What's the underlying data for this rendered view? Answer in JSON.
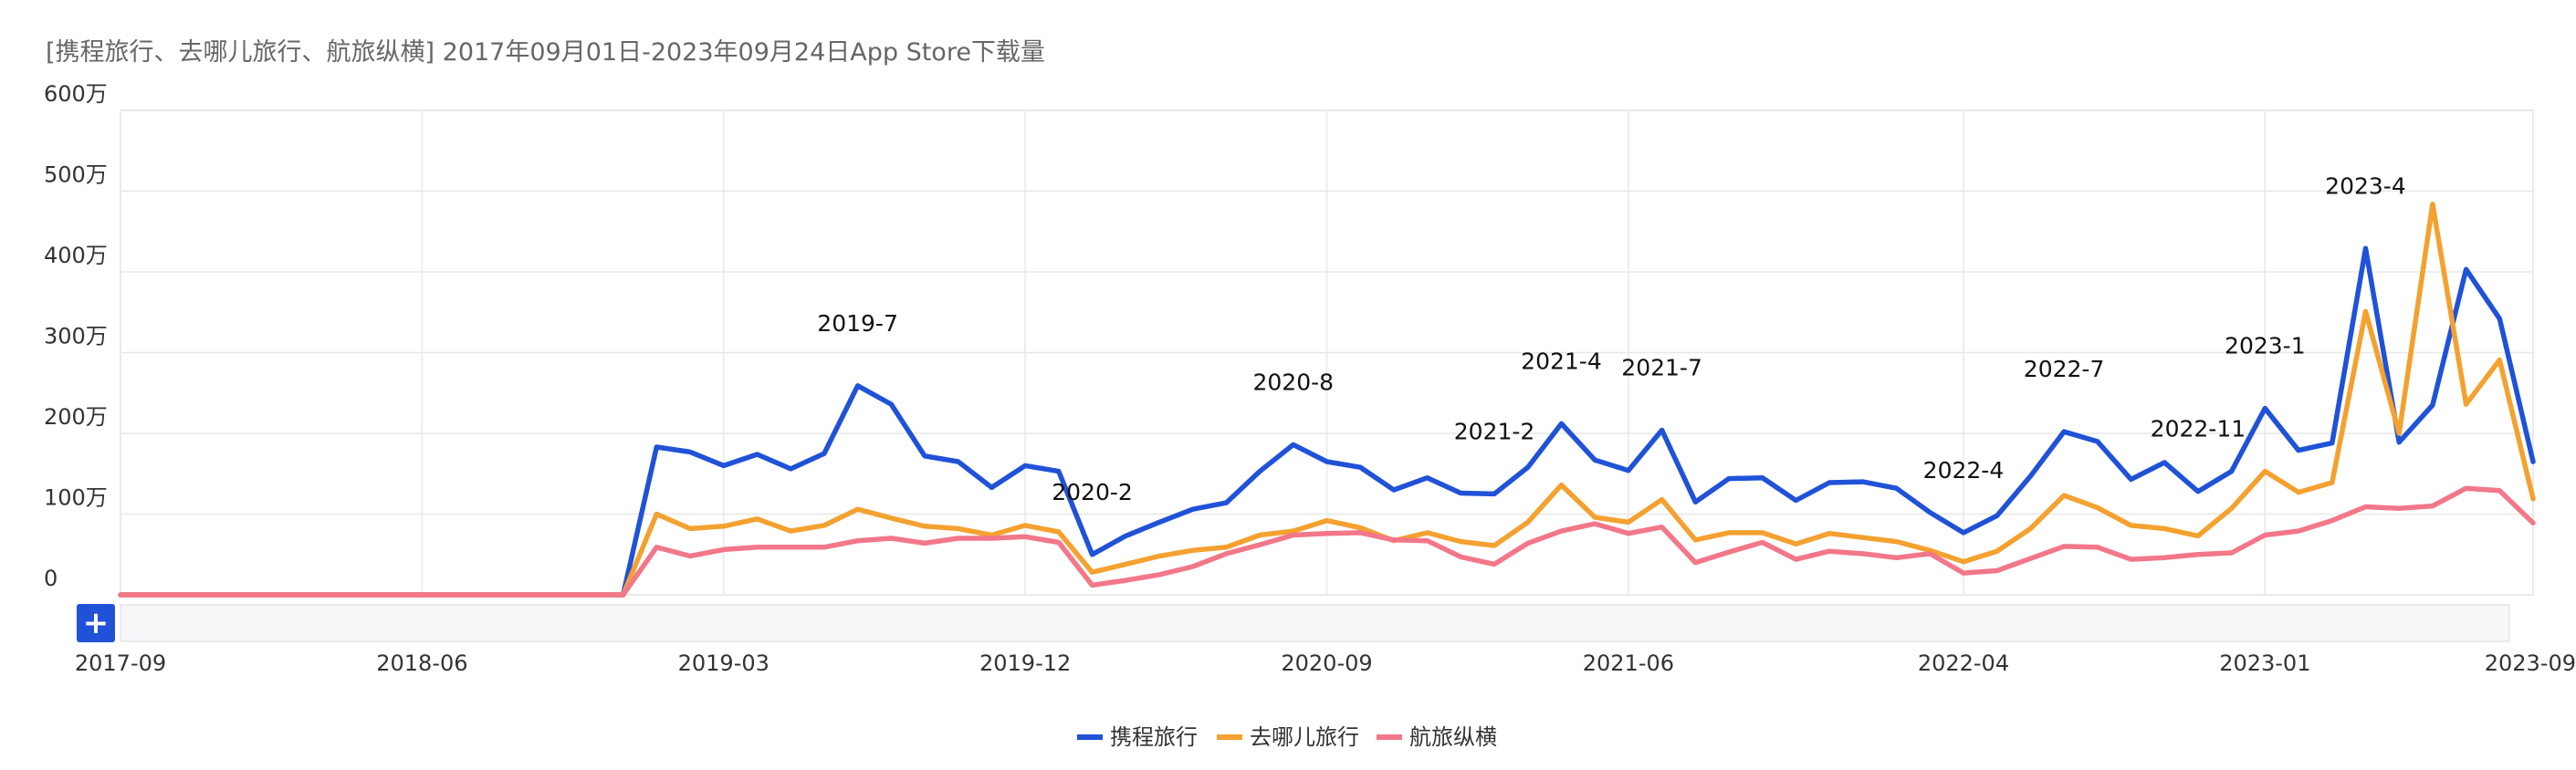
{
  "title": "[携程旅行、去哪儿旅行、航旅纵横]  2017年09月01日-2023年09月24日App Store下载量",
  "colors": {
    "ctrip": "#2052d8",
    "qunar": "#f4a130",
    "umetrip": "#f27789",
    "grid": "#e8e8e8",
    "axis_text": "#333333",
    "title_text": "#666666"
  },
  "chart_data": {
    "type": "line",
    "title": "[携程旅行、去哪儿旅行、航旅纵横]  2017年09月01日-2023年09月24日App Store下载量",
    "xlabel": "",
    "ylabel": "",
    "ylim": [
      0,
      6000000
    ],
    "y_ticks": [
      {
        "value": 0,
        "label": "0"
      },
      {
        "value": 1000000,
        "label": "100万"
      },
      {
        "value": 2000000,
        "label": "200万"
      },
      {
        "value": 3000000,
        "label": "300万"
      },
      {
        "value": 4000000,
        "label": "400万"
      },
      {
        "value": 5000000,
        "label": "500万"
      },
      {
        "value": 6000000,
        "label": "600万"
      }
    ],
    "x_ticks": [
      "2017-09",
      "2018-06",
      "2019-03",
      "2019-12",
      "2020-09",
      "2021-06",
      "2022-04",
      "2023-01",
      "2023-09"
    ],
    "x_tick_index": [
      0,
      9,
      18,
      27,
      36,
      45,
      55,
      64,
      72
    ],
    "n_points": 73,
    "grid": true,
    "legend_position": "bottom-center",
    "series": [
      {
        "name": "携程旅行",
        "key": "ctrip",
        "values": [
          0,
          0,
          0,
          0,
          0,
          0,
          0,
          0,
          0,
          0,
          0,
          0,
          0,
          0,
          0,
          0,
          1830000,
          1770000,
          1600000,
          1740000,
          1560000,
          1750000,
          2590000,
          2360000,
          1720000,
          1650000,
          1330000,
          1600000,
          1530000,
          500000,
          730000,
          900000,
          1060000,
          1140000,
          1530000,
          1860000,
          1650000,
          1580000,
          1300000,
          1450000,
          1260000,
          1250000,
          1580000,
          2120000,
          1670000,
          1540000,
          2040000,
          1150000,
          1440000,
          1450000,
          1170000,
          1390000,
          1400000,
          1320000,
          1020000,
          770000,
          980000,
          1470000,
          2020000,
          1900000,
          1430000,
          1640000,
          1280000,
          1530000,
          2310000,
          1790000,
          1880000,
          4290000,
          1890000,
          2350000,
          4030000,
          3420000,
          1650000
        ]
      },
      {
        "name": "去哪儿旅行",
        "key": "qunar",
        "values": [
          0,
          0,
          0,
          0,
          0,
          0,
          0,
          0,
          0,
          0,
          0,
          0,
          0,
          0,
          0,
          0,
          1000000,
          820000,
          850000,
          940000,
          790000,
          860000,
          1060000,
          950000,
          850000,
          820000,
          740000,
          860000,
          780000,
          280000,
          380000,
          480000,
          550000,
          590000,
          740000,
          790000,
          920000,
          830000,
          670000,
          770000,
          660000,
          610000,
          900000,
          1360000,
          960000,
          900000,
          1180000,
          680000,
          770000,
          770000,
          630000,
          760000,
          710000,
          660000,
          550000,
          410000,
          540000,
          820000,
          1230000,
          1080000,
          860000,
          820000,
          730000,
          1070000,
          1530000,
          1270000,
          1390000,
          3510000,
          2000000,
          4840000,
          2360000,
          2910000,
          1190000
        ]
      },
      {
        "name": "航旅纵横",
        "key": "umetrip",
        "values": [
          0,
          0,
          0,
          0,
          0,
          0,
          0,
          0,
          0,
          0,
          0,
          0,
          0,
          0,
          0,
          0,
          590000,
          480000,
          560000,
          590000,
          590000,
          590000,
          670000,
          700000,
          640000,
          700000,
          700000,
          720000,
          650000,
          120000,
          180000,
          250000,
          350000,
          510000,
          620000,
          740000,
          760000,
          770000,
          680000,
          670000,
          470000,
          380000,
          640000,
          790000,
          880000,
          760000,
          840000,
          400000,
          530000,
          650000,
          440000,
          540000,
          510000,
          460000,
          510000,
          270000,
          300000,
          450000,
          600000,
          590000,
          440000,
          460000,
          500000,
          520000,
          740000,
          790000,
          920000,
          1090000,
          1070000,
          1100000,
          1320000,
          1290000,
          890000
        ]
      }
    ],
    "annotations": [
      {
        "text": "2019-7",
        "index": 22,
        "series": "ctrip"
      },
      {
        "text": "2020-2",
        "index": 29,
        "series": "ctrip"
      },
      {
        "text": "2020-8",
        "index": 35,
        "series": "ctrip"
      },
      {
        "text": "2021-2",
        "index": 41,
        "series": "ctrip"
      },
      {
        "text": "2021-4",
        "index": 43,
        "series": "ctrip"
      },
      {
        "text": "2021-7",
        "index": 46,
        "series": "ctrip"
      },
      {
        "text": "2022-4",
        "index": 55,
        "series": "ctrip"
      },
      {
        "text": "2022-7",
        "index": 58,
        "series": "ctrip"
      },
      {
        "text": "2022-11",
        "index": 62,
        "series": "ctrip"
      },
      {
        "text": "2023-1",
        "index": 64,
        "series": "ctrip"
      },
      {
        "text": "2023-4",
        "index": 67,
        "series": "ctrip"
      }
    ]
  },
  "zoom_control": {
    "button_label": "+"
  }
}
